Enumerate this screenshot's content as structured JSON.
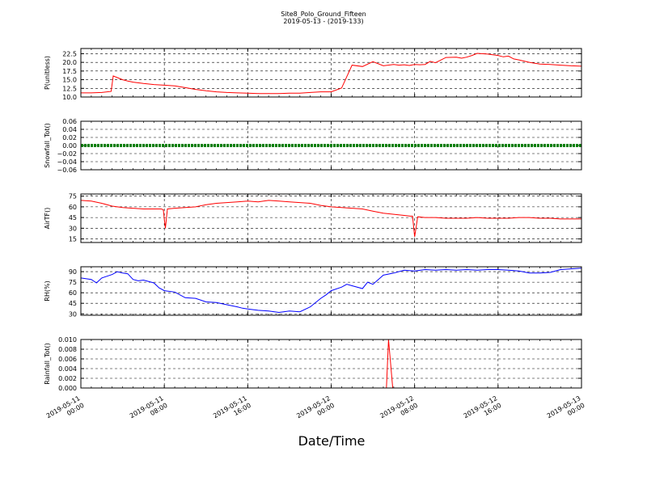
{
  "title_line1": "Site8_Polo_Ground_Fifteen",
  "title_line2": "2019-05-13 - (2019-133)",
  "xaxis_label": "Date/Time",
  "x_ticks": [
    {
      "line1": "2019-05-11",
      "line2": "00:00",
      "t": 0
    },
    {
      "line1": "2019-05-11",
      "line2": "08:00",
      "t": 8
    },
    {
      "line1": "2019-05-11",
      "line2": "16:00",
      "t": 16
    },
    {
      "line1": "2019-05-12",
      "line2": "00:00",
      "t": 24
    },
    {
      "line1": "2019-05-12",
      "line2": "08:00",
      "t": 32
    },
    {
      "line1": "2019-05-12",
      "line2": "16:00",
      "t": 40
    },
    {
      "line1": "2019-05-13",
      "line2": "00:00",
      "t": 48
    }
  ],
  "chart_data": [
    {
      "type": "line",
      "ylabel": "P(unitless)",
      "color": "#ff0000",
      "ylim": [
        10,
        24
      ],
      "yticks": [
        "10.0",
        "12.5",
        "15.0",
        "17.5",
        "20.0",
        "22.5"
      ],
      "ytick_values": [
        10,
        12.5,
        15,
        17.5,
        20,
        22.5
      ],
      "grid": true,
      "xlim": [
        0,
        48
      ],
      "x": [
        0,
        1,
        2,
        2.9,
        3.1,
        3.5,
        4,
        4.5,
        5,
        6,
        7,
        8,
        9,
        10,
        11,
        12,
        13,
        14,
        15,
        16,
        17,
        18,
        19,
        20,
        21,
        22,
        23,
        24,
        25,
        26,
        27,
        28,
        29,
        30,
        30.5,
        31,
        31.5,
        32,
        32.5,
        33,
        33.5,
        34,
        35,
        36,
        36.5,
        37,
        37.5,
        38,
        39,
        40,
        40.5,
        41,
        41.5,
        42,
        43,
        44,
        45,
        46,
        47,
        48
      ],
      "values": [
        11.2,
        11.2,
        11.3,
        11.6,
        16.1,
        15.6,
        15.0,
        14.6,
        14.3,
        13.9,
        13.6,
        13.4,
        13.2,
        12.7,
        12.2,
        11.8,
        11.5,
        11.3,
        11.2,
        11.1,
        11.0,
        11.0,
        11.0,
        11.1,
        11.1,
        11.3,
        11.5,
        11.5,
        12.6,
        19.2,
        18.8,
        20.2,
        19.0,
        19.4,
        19.2,
        19.3,
        19.1,
        19.4,
        19.3,
        19.4,
        20.3,
        19.9,
        21.4,
        21.5,
        21.2,
        21.5,
        22.0,
        22.6,
        22.4,
        22.0,
        21.6,
        21.8,
        21.0,
        20.7,
        20.0,
        19.5,
        19.4,
        19.2,
        19.0,
        18.9
      ]
    },
    {
      "type": "line",
      "ylabel": "Snowfall_Tot()",
      "color": "#008000",
      "ylim": [
        -0.06,
        0.06
      ],
      "yticks": [
        "−0.06",
        "−0.04",
        "−0.02",
        "0.00",
        "0.02",
        "0.04",
        "0.06"
      ],
      "ytick_values": [
        -0.06,
        -0.04,
        -0.02,
        0,
        0.02,
        0.04,
        0.06
      ],
      "grid": true,
      "xlim": [
        0,
        48
      ],
      "x": [
        0,
        48
      ],
      "values": [
        0,
        0
      ],
      "markers": true
    },
    {
      "type": "line",
      "ylabel": "AirTF()",
      "color": "#ff0000",
      "ylim": [
        10,
        78
      ],
      "yticks": [
        "15",
        "30",
        "45",
        "60",
        "75"
      ],
      "ytick_values": [
        15,
        30,
        45,
        60,
        75
      ],
      "grid": true,
      "xlim": [
        0,
        48
      ],
      "x": [
        0,
        1,
        2,
        3,
        4,
        5,
        6,
        7,
        7.7,
        7.9,
        8.1,
        8.3,
        9,
        10,
        11,
        12,
        13,
        14,
        15,
        16,
        17,
        18,
        19,
        20,
        21,
        22,
        23,
        24,
        25,
        26,
        27,
        28,
        29,
        31,
        31.6,
        31.8,
        32,
        32.3,
        33,
        34,
        35,
        36,
        37,
        38,
        39,
        40,
        41,
        42,
        43,
        44,
        45,
        46,
        47,
        48
      ],
      "values": [
        69,
        68,
        65,
        61,
        59,
        58,
        57,
        57,
        57,
        56,
        30,
        57,
        58,
        59,
        60,
        63,
        65,
        66,
        67,
        68,
        67,
        69,
        68,
        67,
        66,
        65,
        62,
        60,
        59,
        58,
        57,
        54,
        51,
        48,
        47,
        47,
        18,
        46,
        45,
        45,
        44,
        44,
        44,
        45,
        44,
        44,
        44,
        45,
        45,
        44,
        44,
        43,
        43,
        43
      ]
    },
    {
      "type": "line",
      "ylabel": "RH(%)",
      "color": "#0000ff",
      "ylim": [
        28,
        97
      ],
      "yticks": [
        "30",
        "45",
        "60",
        "75",
        "90"
      ],
      "ytick_values": [
        30,
        45,
        60,
        75,
        90
      ],
      "grid": true,
      "xlim": [
        0,
        48
      ],
      "x": [
        0,
        1,
        1.5,
        2,
        3,
        3.5,
        4,
        4.5,
        5,
        5.5,
        6,
        7,
        7.5,
        8,
        9,
        10,
        11,
        12,
        13,
        14,
        15,
        15.5,
        16,
        17,
        18,
        19,
        20,
        21,
        22,
        23,
        23.5,
        24,
        25,
        25.5,
        26,
        27,
        27.5,
        28,
        29,
        30,
        31,
        32,
        33,
        34,
        35,
        36,
        37,
        38,
        39,
        40,
        41,
        42,
        43,
        44,
        45,
        46,
        47,
        48
      ],
      "values": [
        81,
        79,
        74,
        81,
        86,
        90,
        88,
        87,
        79,
        77,
        78,
        74,
        67,
        63,
        61,
        53,
        52,
        47,
        46,
        43,
        40,
        38,
        37,
        35,
        34,
        32,
        34,
        33,
        40,
        52,
        57,
        63,
        68,
        72,
        70,
        66,
        75,
        72,
        85,
        88,
        92,
        91,
        93,
        92,
        93,
        92,
        93,
        92,
        93,
        93,
        92,
        91,
        88,
        88,
        89,
        93,
        94,
        95
      ]
    },
    {
      "type": "line",
      "ylabel": "Rainfall_Tot()",
      "color": "#ff0000",
      "ylim": [
        0,
        0.01
      ],
      "yticks": [
        "0.000",
        "0.002",
        "0.004",
        "0.006",
        "0.008",
        "0.010"
      ],
      "ytick_values": [
        0,
        0.002,
        0.004,
        0.006,
        0.008,
        0.01
      ],
      "grid": true,
      "xlim": [
        0,
        48
      ],
      "x": [
        0,
        29.3,
        29.5,
        29.9,
        48
      ],
      "values": [
        0,
        0,
        0.01,
        0,
        0
      ]
    }
  ]
}
